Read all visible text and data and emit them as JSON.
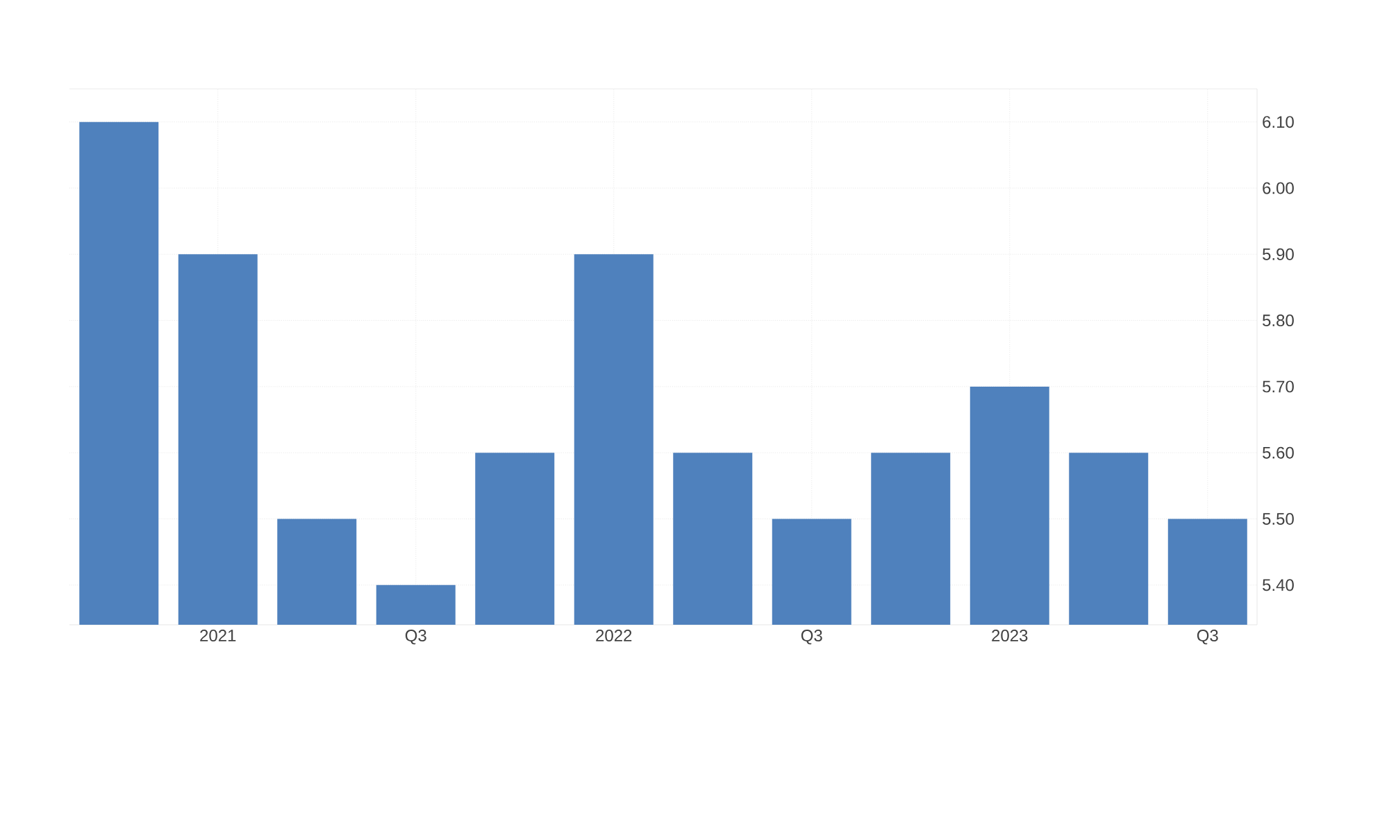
{
  "chart_data": {
    "type": "bar",
    "categories": [
      null,
      "2021",
      null,
      "Q3",
      null,
      "2022",
      null,
      "Q3",
      null,
      "2023",
      null,
      "Q3"
    ],
    "values": [
      6.1,
      5.9,
      5.5,
      5.4,
      5.6,
      5.9,
      5.6,
      5.5,
      5.6,
      5.7,
      5.6,
      5.5
    ],
    "color": "#4f81bd",
    "ylim": [
      5.34,
      6.15
    ],
    "yticks": [
      {
        "value": 5.4,
        "label": "5.40"
      },
      {
        "value": 5.5,
        "label": "5.50"
      },
      {
        "value": 5.6,
        "label": "5.60"
      },
      {
        "value": 5.7,
        "label": "5.70"
      },
      {
        "value": 5.8,
        "label": "5.80"
      },
      {
        "value": 5.9,
        "label": "5.90"
      },
      {
        "value": 6.0,
        "label": "6.00"
      },
      {
        "value": 6.1,
        "label": "6.10"
      }
    ],
    "grid": true
  }
}
